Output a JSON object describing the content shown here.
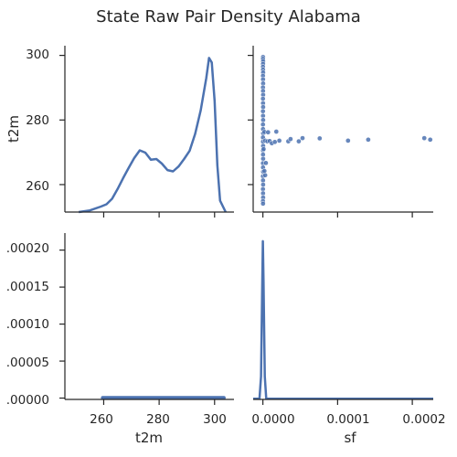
{
  "chart_data": {
    "type": "pairplot",
    "title": "State Raw Pair Density Alabama",
    "variables": [
      "t2m",
      "sf"
    ],
    "line_color": "#4c72b0",
    "panels": [
      {
        "id": "t2m-t2m",
        "type": "line",
        "description": "kde",
        "xlim": [
          246,
          307
        ],
        "ylim": [
          251.5,
          303
        ],
        "yticks": [
          "260",
          "280",
          "300"
        ],
        "ylabel": "t2m",
        "x": [
          251,
          255,
          259,
          261,
          263,
          265,
          267,
          269,
          271,
          273,
          275,
          277,
          279,
          281,
          283,
          285,
          287,
          289,
          291,
          293,
          295,
          297,
          298,
          299,
          300,
          301,
          302,
          304
        ],
        "y": [
          251.5,
          252.0,
          253.2,
          253.9,
          255.6,
          258.6,
          262.0,
          265.2,
          268.2,
          270.6,
          269.9,
          267.7,
          267.9,
          266.5,
          264.5,
          264.1,
          265.6,
          267.9,
          270.5,
          275.7,
          283.0,
          293.0,
          299.2,
          297.8,
          286.0,
          266.0,
          255.0,
          251.5
        ]
      },
      {
        "id": "sf-t2m",
        "type": "scatter",
        "xlim": [
          -1.3e-05,
          0.000228
        ],
        "ylim": [
          251.5,
          303
        ],
        "points": [
          [
            2e-07,
            299.5
          ],
          [
            1e-07,
            298.9
          ],
          [
            3e-07,
            298.2
          ],
          [
            2e-07,
            297.4
          ],
          [
            1e-07,
            296.5
          ],
          [
            2e-07,
            295.6
          ],
          [
            3e-07,
            294.7
          ],
          [
            1e-07,
            293.7
          ],
          [
            2e-07,
            292.6
          ],
          [
            3e-07,
            291.3
          ],
          [
            1e-07,
            290.1
          ],
          [
            2e-07,
            289.0
          ],
          [
            3e-07,
            287.8
          ],
          [
            1e-07,
            286.6
          ],
          [
            2e-07,
            285.2
          ],
          [
            3e-07,
            284.0
          ],
          [
            1e-07,
            282.7
          ],
          [
            2e-07,
            281.3
          ],
          [
            3e-07,
            280.0
          ],
          [
            1e-07,
            278.6
          ],
          [
            2e-07,
            277.2
          ],
          [
            3e-07,
            275.9
          ],
          [
            1e-07,
            274.6
          ],
          [
            2e-07,
            273.3
          ],
          [
            3e-07,
            272.0
          ],
          [
            1e-07,
            270.6
          ],
          [
            2e-07,
            269.3
          ],
          [
            3e-07,
            268.0
          ],
          [
            1e-07,
            266.6
          ],
          [
            2e-07,
            265.3
          ],
          [
            3e-07,
            264.0
          ],
          [
            1e-07,
            262.6
          ],
          [
            2e-07,
            261.3
          ],
          [
            3e-07,
            260.0
          ],
          [
            1e-07,
            258.6
          ],
          [
            2e-07,
            257.3
          ],
          [
            3e-07,
            256.0
          ],
          [
            1e-07,
            254.9
          ],
          [
            2e-07,
            254.1
          ],
          [
            2e-06,
            276.3
          ],
          [
            3e-06,
            273.6
          ],
          [
            4e-06,
            266.7
          ],
          [
            2e-06,
            264.2
          ],
          [
            3e-06,
            262.9
          ],
          [
            1e-06,
            271.0
          ],
          [
            7e-06,
            276.2
          ],
          [
            6e-06,
            273.4
          ],
          [
            9e-06,
            273.5
          ],
          [
            1.2e-05,
            272.8
          ],
          [
            1.6e-05,
            273.2
          ],
          [
            1.8e-05,
            276.4
          ],
          [
            2.2e-05,
            273.6
          ],
          [
            3.4e-05,
            273.4
          ],
          [
            3.7e-05,
            274.1
          ],
          [
            4.8e-05,
            273.4
          ],
          [
            5.3e-05,
            274.4
          ],
          [
            7.6e-05,
            274.3
          ],
          [
            0.000114,
            273.6
          ],
          [
            0.000141,
            273.9
          ],
          [
            0.000216,
            274.4
          ],
          [
            0.000224,
            273.9
          ]
        ]
      },
      {
        "id": "t2m-sf",
        "type": "line",
        "description": "kde contour band",
        "xlim": [
          246,
          307
        ],
        "ylim": [
          -1.8e-06,
          0.000223
        ],
        "yticks": [
          ".00000",
          ".00005",
          ".00010",
          ".00015",
          ".00020"
        ],
        "xticks": [
          "260",
          "280",
          "300"
        ],
        "xlabel": "t2m",
        "y_center": 4e-07
      },
      {
        "id": "sf-sf",
        "type": "line",
        "description": "kde",
        "xlim": [
          -1.3e-05,
          0.000228
        ],
        "ylim": [
          -1e-06,
          0.000223
        ],
        "xticks": [
          "0.0000",
          "0.0001",
          "0.0002"
        ],
        "xlabel": "sf",
        "x": [
          -1.3e-05,
          -4.5e-06,
          -2.5e-06,
          -8e-07,
          0.0,
          8e-07,
          2.5e-06,
          4.5e-06,
          1e-05,
          0.000228
        ],
        "y": [
          0.0,
          0.0,
          3e-05,
          0.00016,
          0.000212,
          0.00016,
          3e-05,
          0.0,
          0.0,
          0.0
        ]
      }
    ]
  }
}
